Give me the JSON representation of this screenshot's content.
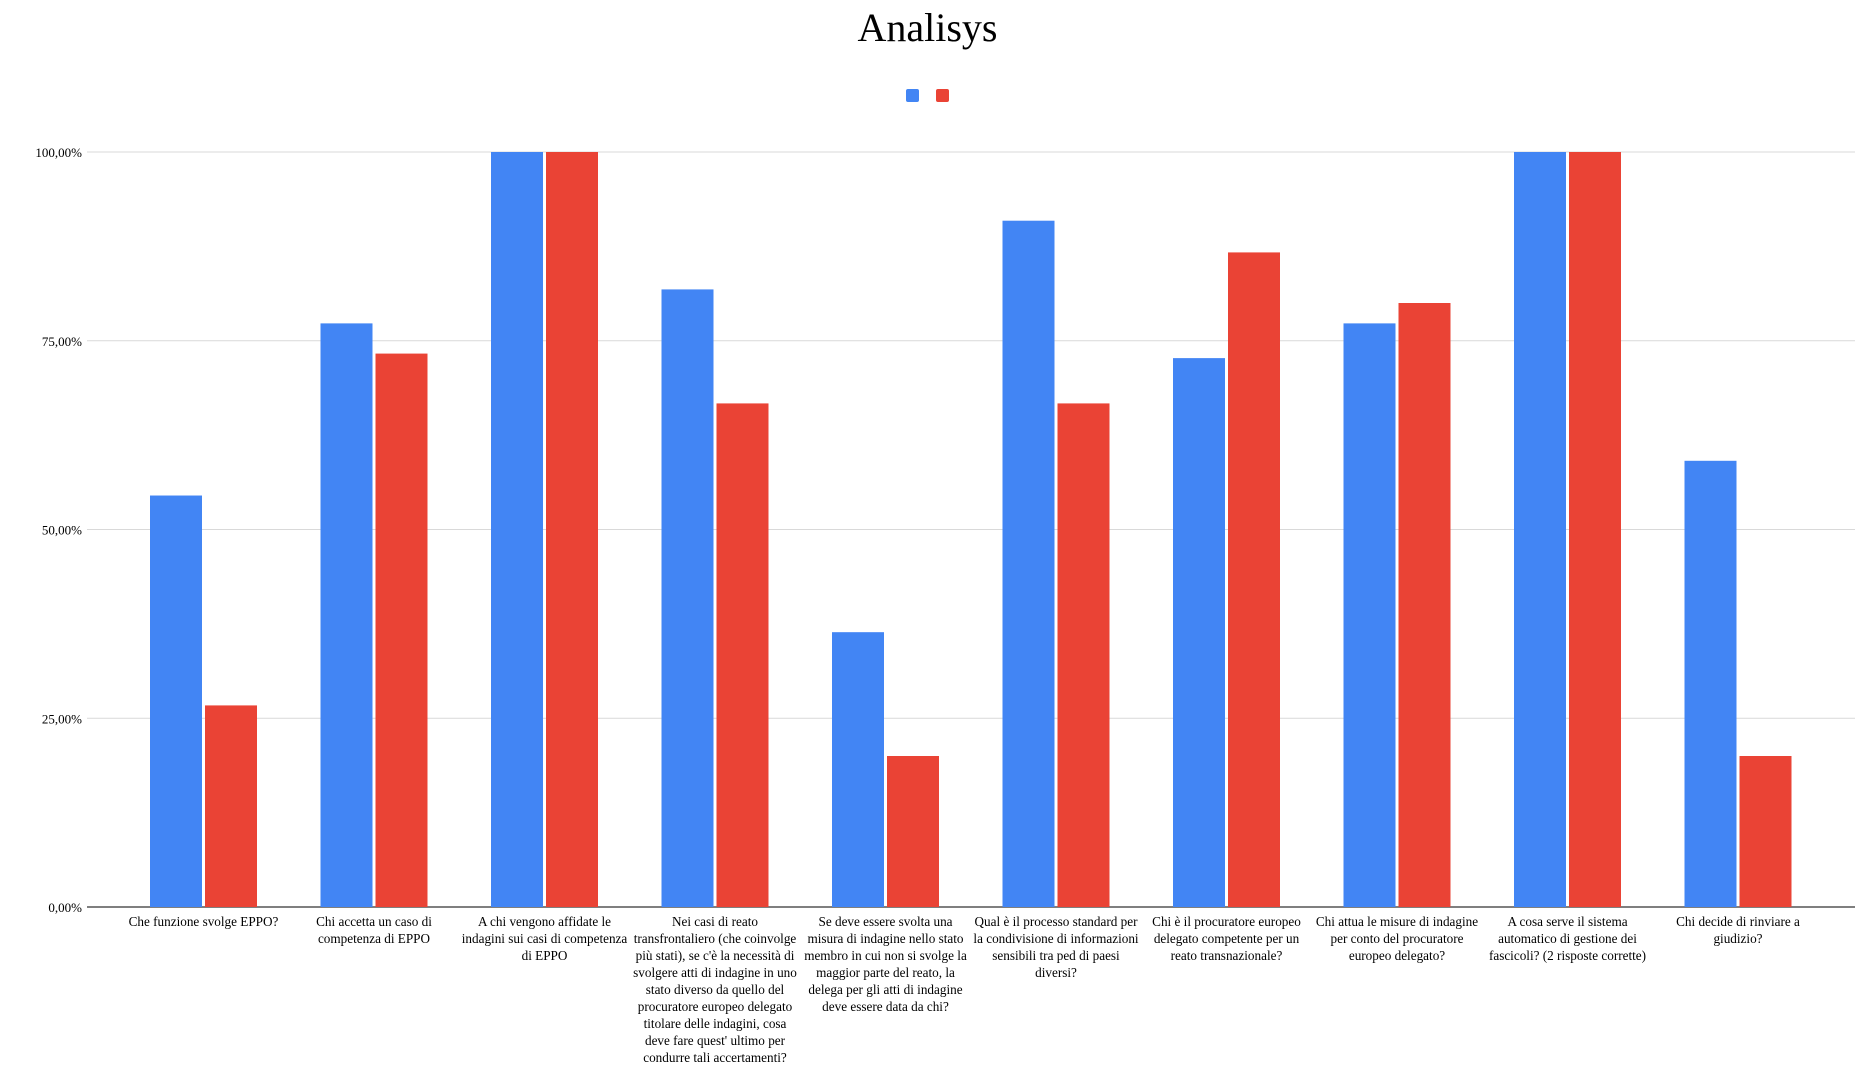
{
  "chart_data": {
    "type": "bar",
    "title": "Analisys",
    "xlabel": "",
    "ylabel": "",
    "ylim": [
      0,
      1
    ],
    "y_ticks": [
      {
        "value": 0,
        "label": "0,00%"
      },
      {
        "value": 0.25,
        "label": "25,00%"
      },
      {
        "value": 0.5,
        "label": "50,00%"
      },
      {
        "value": 0.75,
        "label": "75,00%"
      },
      {
        "value": 1,
        "label": "100,00%"
      }
    ],
    "grid": true,
    "legend_position": "top-center",
    "categories": [
      "Che funzione svolge EPPO?",
      "Chi accetta un caso di competenza di EPPO",
      "A chi vengono affidate le indagini sui casi di competenza di EPPO",
      "Nei casi di reato transfrontaliero (che coinvolge più stati), se c'è la necessità di svolgere atti di indagine in uno stato diverso da quello del procuratore europeo delegato titolare delle indagini, cosa deve fare quest' ultimo per condurre tali accertamenti?",
      "Se  deve essere svolta una misura di indagine nello stato membro in cui non si svolge la maggior parte del reato, la delega per gli atti di indagine deve essere data da chi?",
      "Qual è il processo standard per la condivisione di informazioni sensibili tra ped di paesi diversi?",
      "Chi è il procuratore europeo delegato competente per un reato transnazionale?",
      "Chi attua le misure di indagine per conto del procuratore europeo delegato?",
      "A cosa serve il sistema automatico di gestione dei fascicoli? (2 risposte corrette)",
      "Chi decide di rinviare a giudizio?"
    ],
    "series": [
      {
        "color": "#4285f4",
        "values": [
          0.545,
          0.773,
          1.0,
          0.818,
          0.364,
          0.909,
          0.727,
          0.773,
          1.0,
          0.591
        ]
      },
      {
        "color": "#ea4335",
        "values": [
          0.267,
          0.733,
          1.0,
          0.667,
          0.2,
          0.667,
          0.867,
          0.8,
          1.0,
          0.2
        ]
      }
    ]
  },
  "colors": {
    "gridline": "#d9d9d9",
    "axis": "#333333",
    "text": "#000000"
  }
}
